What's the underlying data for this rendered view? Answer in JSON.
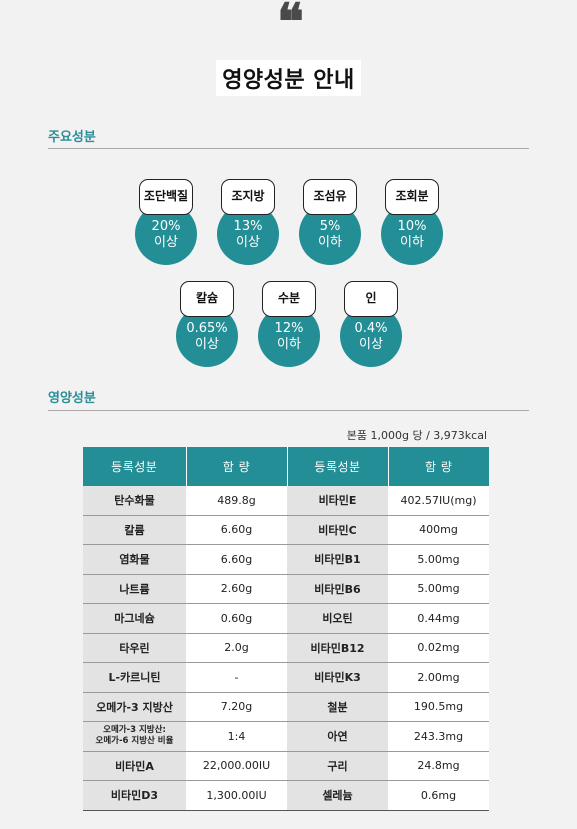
{
  "quote_mark": "❝",
  "title": "영양성분 안내",
  "main_section": {
    "title": "주요성분"
  },
  "badges": [
    {
      "name": "조단백질",
      "value": "20%",
      "qualifier": "이상"
    },
    {
      "name": "조지방",
      "value": "13%",
      "qualifier": "이상"
    },
    {
      "name": "조섬유",
      "value": "5%",
      "qualifier": "이하"
    },
    {
      "name": "조회분",
      "value": "10%",
      "qualifier": "이하"
    },
    {
      "name": "칼슘",
      "value": "0.65%",
      "qualifier": "이상"
    },
    {
      "name": "수분",
      "value": "12%",
      "qualifier": "이하"
    },
    {
      "name": "인",
      "value": "0.4%",
      "qualifier": "이상"
    }
  ],
  "nutrition_section": {
    "title": "영양성분",
    "basis": "본품 1,000g 당 / 3,973kcal",
    "headers": [
      "등록성분",
      "함 량",
      "등록성분",
      "함 량"
    ],
    "rows": [
      [
        "탄수화물",
        "489.8g",
        "비타민E",
        "402.57IU(mg)"
      ],
      [
        "칼륨",
        "6.60g",
        "비타민C",
        "400mg"
      ],
      [
        "염화물",
        "6.60g",
        "비타민B1",
        "5.00mg"
      ],
      [
        "나트륨",
        "2.60g",
        "비타민B6",
        "5.00mg"
      ],
      [
        "마그네슘",
        "0.60g",
        "비오틴",
        "0.44mg"
      ],
      [
        "타우린",
        "2.0g",
        "비타민B12",
        "0.02mg"
      ],
      [
        "L-카르니틴",
        "-",
        "비타민K3",
        "2.00mg"
      ],
      [
        "오메가-3 지방산",
        "7.20g",
        "철분",
        "190.5mg"
      ],
      [
        "오메가-3 지방산:\n오메가-6 지방산 비율",
        "1:4",
        "아연",
        "243.3mg"
      ],
      [
        "비타민A",
        "22,000.00IU",
        "구리",
        "24.8mg"
      ],
      [
        "비타민D3",
        "1,300.00IU",
        "셀레늄",
        "0.6mg"
      ]
    ]
  },
  "colors": {
    "accent": "#238e95",
    "section_title": "#2a8f98",
    "label_bg": "#e3e3e3"
  }
}
